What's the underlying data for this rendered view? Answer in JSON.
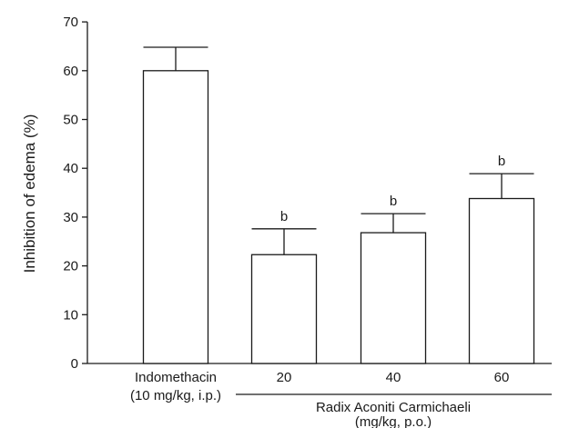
{
  "chart_data": {
    "type": "bar",
    "title": "",
    "ylabel": "Inhibition of edema (%)",
    "ylim": [
      0,
      70
    ],
    "yticks": [
      "0",
      "10",
      "20",
      "30",
      "40",
      "50",
      "60",
      "70"
    ],
    "categories": [
      {
        "line1": "Indomethacin",
        "line2": "(10 mg/kg, i.p.)"
      },
      {
        "line1": "20",
        "line2": ""
      },
      {
        "line1": "40",
        "line2": ""
      },
      {
        "line1": "60",
        "line2": ""
      }
    ],
    "values": [
      60.0,
      22.3,
      26.8,
      33.8
    ],
    "errors": [
      4.8,
      5.3,
      3.9,
      5.1
    ],
    "significance": [
      "",
      "b",
      "b",
      "b"
    ],
    "group_label": {
      "line1": "Radix Aconiti Carmichaeli",
      "line2": "(mg/kg, p.o.)"
    },
    "grid": false,
    "colors": {
      "bar_fill": "#ffffff",
      "stroke": "#1a1a1a"
    }
  }
}
